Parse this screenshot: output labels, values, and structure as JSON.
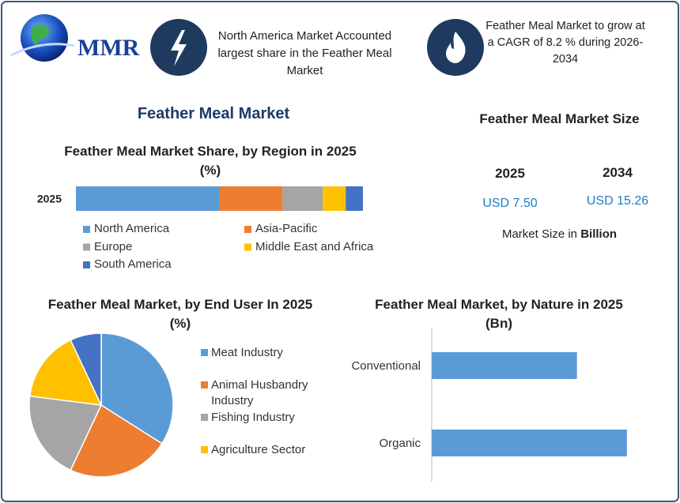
{
  "header": {
    "logo_text": "MMR",
    "note1": "North America Market Accounted largest share in the Feather Meal Market",
    "note2": "Feather Meal Market to grow at a CAGR of  8.2 % during 2026-2034"
  },
  "title": "Feather Meal Market",
  "market_size": {
    "title": "Feather Meal Market Size",
    "years": [
      "2025",
      "2034"
    ],
    "values": [
      "USD 7.50",
      "USD 15.26"
    ],
    "note": "Market Size in",
    "note_bold": "Billion"
  },
  "chart_data": [
    {
      "type": "stacked_bar",
      "title": "Feather Meal Market Share, by Region in 2025 (%)",
      "categories": [
        "2025"
      ],
      "xlim": [
        0,
        100
      ],
      "series": [
        {
          "name": "North America",
          "color": "#5b9bd5",
          "values": [
            50
          ]
        },
        {
          "name": "Asia-Pacific",
          "color": "#ed7d31",
          "values": [
            22
          ]
        },
        {
          "name": "Europe",
          "color": "#a5a5a5",
          "values": [
            14
          ]
        },
        {
          "name": "Middle East and Africa",
          "color": "#ffc000",
          "values": [
            8
          ]
        },
        {
          "name": "South America",
          "color": "#4472c4",
          "values": [
            6
          ]
        }
      ]
    },
    {
      "type": "pie",
      "title": "Feather Meal Market, by End User In 2025 (%)",
      "categories": [
        "Meat Industry",
        "Animal Husbandry Industry",
        "Fishing Industry",
        "Agriculture Sector",
        null
      ],
      "values": [
        34,
        23,
        20,
        16,
        7
      ],
      "colors": [
        "#5b9bd5",
        "#ed7d31",
        "#a5a5a5",
        "#ffc000",
        "#4472c4"
      ]
    },
    {
      "type": "hbar",
      "title": "Feather Meal Market, by Nature in 2025 (Bn)",
      "categories": [
        "Conventional",
        "Organic"
      ],
      "values": [
        3.2,
        4.3
      ],
      "color": "#5b9bd5",
      "xlim": [
        0,
        5
      ]
    }
  ]
}
